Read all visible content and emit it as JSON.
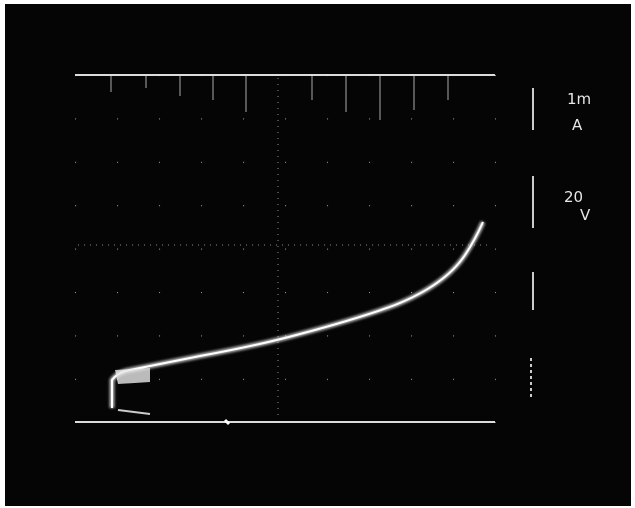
{
  "readouts": [
    {
      "lines": [
        "1m",
        "A"
      ]
    },
    {
      "lines": [
        "20",
        "V"
      ]
    }
  ]
}
